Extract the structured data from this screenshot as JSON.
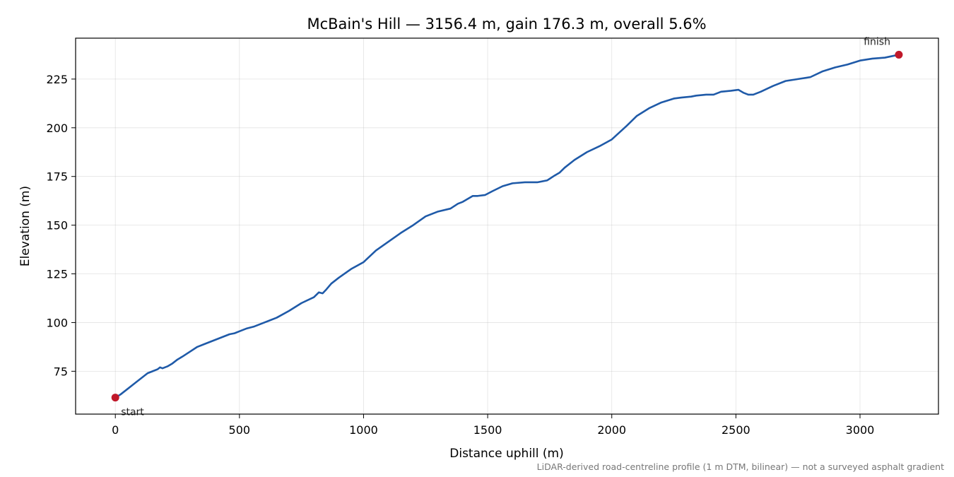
{
  "chart_data": {
    "type": "line",
    "title": "McBain's Hill — 3156.4 m, gain 176.3 m, overall 5.6%",
    "xlabel": "Distance uphill (m)",
    "ylabel": "Elevation (m)",
    "xlim": [
      -160,
      3316
    ],
    "ylim": [
      53,
      246
    ],
    "xticks": [
      0,
      500,
      1000,
      1500,
      2000,
      2500,
      3000
    ],
    "yticks": [
      75,
      100,
      125,
      150,
      175,
      200,
      225
    ],
    "grid": true,
    "line_color": "#1f5aa8",
    "marker_color": "#c0182a",
    "footnote": "LiDAR-derived road-centreline profile (1 m DTM, bilinear) — not a surveyed asphalt gradient",
    "series": [
      {
        "x": [
          0,
          20,
          50,
          80,
          110,
          130,
          150,
          170,
          180,
          190,
          210,
          230,
          250,
          270,
          300,
          330,
          360,
          400,
          440,
          460,
          480,
          500,
          530,
          560,
          600,
          650,
          700,
          750,
          800,
          820,
          835,
          850,
          870,
          900,
          950,
          1000,
          1050,
          1100,
          1150,
          1200,
          1250,
          1300,
          1350,
          1380,
          1400,
          1440,
          1460,
          1490,
          1520,
          1560,
          1600,
          1650,
          1700,
          1740,
          1770,
          1790,
          1810,
          1850,
          1900,
          1950,
          2000,
          2030,
          2060,
          2100,
          2150,
          2200,
          2250,
          2280,
          2320,
          2340,
          2380,
          2410,
          2440,
          2480,
          2510,
          2530,
          2550,
          2570,
          2600,
          2650,
          2700,
          2750,
          2800,
          2850,
          2900,
          2950,
          3000,
          3050,
          3100,
          3156.4
        ],
        "y": [
          61.5,
          63,
          66,
          69,
          72,
          74,
          75,
          76,
          77,
          76.5,
          77.5,
          79,
          81,
          82.5,
          85,
          87.5,
          89,
          91,
          93,
          94,
          94.5,
          95.5,
          97,
          98,
          100,
          102.5,
          106,
          110,
          113,
          115.5,
          115,
          117,
          120,
          123,
          127.5,
          131,
          137,
          141.5,
          146,
          150,
          154.5,
          157,
          158.5,
          161,
          162,
          165,
          165,
          165.5,
          167.5,
          170,
          171.5,
          172,
          172,
          173,
          175.5,
          177,
          179.5,
          183.5,
          187.5,
          190.5,
          194,
          197.5,
          201,
          206,
          210,
          213,
          215,
          215.5,
          216,
          216.5,
          217,
          217,
          218.5,
          219,
          219.5,
          218,
          217,
          217,
          218.5,
          221.5,
          224,
          225,
          226,
          229,
          231,
          232.5,
          234.5,
          235.5,
          236,
          237.5
        ]
      }
    ],
    "annotations": [
      {
        "label": "start",
        "x": 0,
        "y": 61.5
      },
      {
        "label": "finish",
        "x": 3156.4,
        "y": 237.5
      }
    ]
  }
}
